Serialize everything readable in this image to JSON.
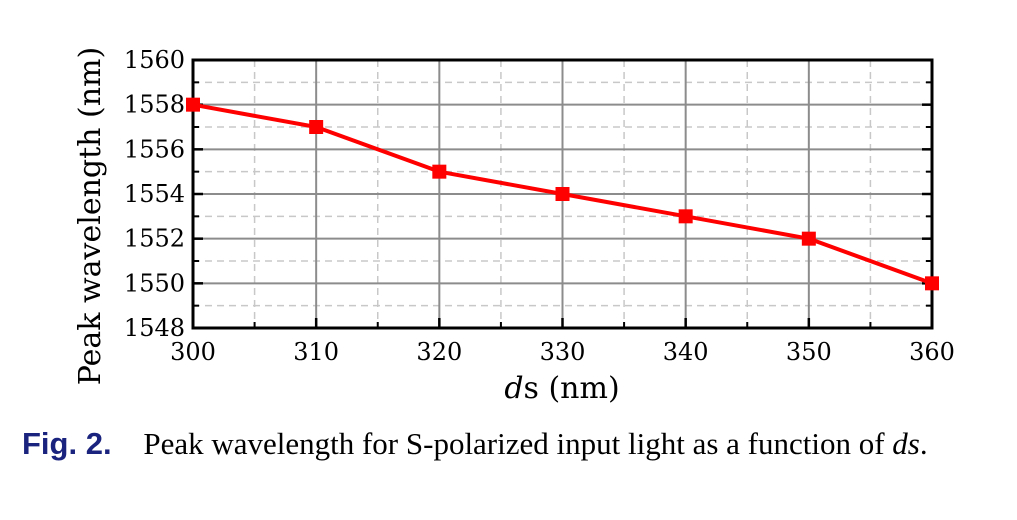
{
  "chart_data": {
    "type": "line",
    "x": [
      300,
      310,
      320,
      330,
      340,
      350,
      360
    ],
    "series": [
      {
        "values": [
          1558,
          1557,
          1555,
          1554,
          1553,
          1552,
          1550
        ],
        "color": "#ff0000",
        "marker": "square"
      }
    ],
    "xlabel_italic": "d",
    "xlabel_rest": "s (nm)",
    "ylabel": "Peak wavelength (nm)",
    "xlim": [
      300,
      360
    ],
    "ylim": [
      1548,
      1560
    ],
    "xticks": [
      "300",
      "310",
      "320",
      "330",
      "340",
      "350",
      "360"
    ],
    "yticks": [
      "1548",
      "1550",
      "1552",
      "1554",
      "1556",
      "1558",
      "1560"
    ],
    "grid": true
  },
  "caption": {
    "fig_label": "Fig. 2.",
    "text": "Peak wavelength for S-polarized input light as a function of",
    "text_italic": "ds",
    "text_end": "."
  }
}
